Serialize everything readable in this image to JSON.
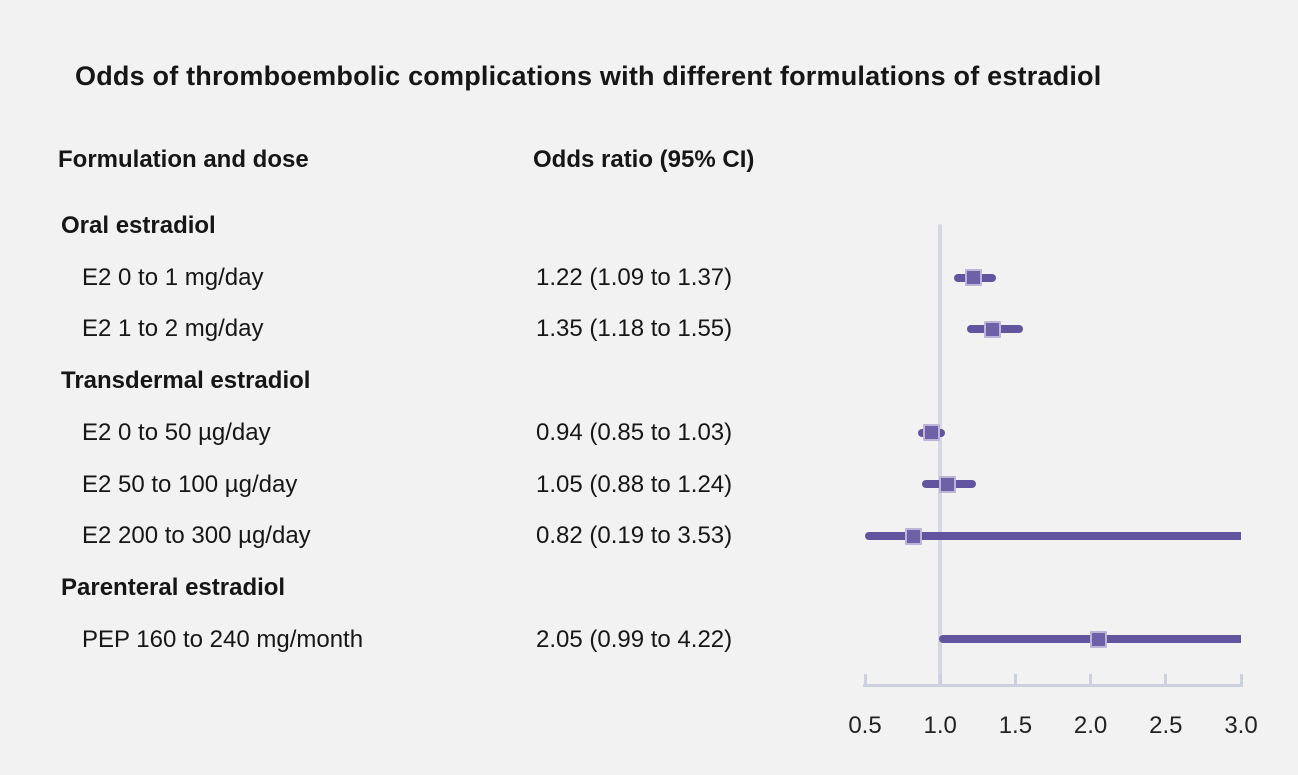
{
  "title": "Odds of thromboembolic complications with different formulations of estradiol",
  "columns": {
    "formulation": "Formulation and dose",
    "odds_ratio": "Odds ratio (95% CI)"
  },
  "colors": {
    "background": "#f2f2f2",
    "text": "#161616",
    "ci_line": "#63549f",
    "marker_fill": "#6f61a8",
    "marker_border": "#beb4da",
    "axis_line": "#ccd1de",
    "reference_line": "#d4d8e3"
  },
  "chart_data": {
    "type": "scatter",
    "variant": "forest-plot",
    "title": "Odds of thromboembolic complications with different formulations of estradiol",
    "xlabel": "Odds ratio",
    "xlim": [
      0.5,
      3.0
    ],
    "reference_line": 1.0,
    "grid": false,
    "legend_position": "none",
    "tick_values": [
      0.5,
      1.0,
      1.5,
      2.0,
      2.5,
      3.0
    ],
    "tick_labels": [
      "0.5",
      "1.0",
      "1.5",
      "2.0",
      "2.5",
      "3.0"
    ],
    "rows": [
      {
        "kind": "section",
        "label": "Oral estradiol"
      },
      {
        "kind": "item",
        "label": "E2 0 to 1 mg/day",
        "or_text": "1.22 (1.09 to 1.37)",
        "estimate": 1.22,
        "ci_low": 1.09,
        "ci_high": 1.37
      },
      {
        "kind": "item",
        "label": "E2 1 to 2 mg/day",
        "or_text": "1.35 (1.18 to 1.55)",
        "estimate": 1.35,
        "ci_low": 1.18,
        "ci_high": 1.55
      },
      {
        "kind": "section",
        "label": "Transdermal estradiol"
      },
      {
        "kind": "item",
        "label": "E2 0 to 50 µg/day",
        "or_text": "0.94 (0.85 to 1.03)",
        "estimate": 0.94,
        "ci_low": 0.85,
        "ci_high": 1.03
      },
      {
        "kind": "item",
        "label": "E2 50 to 100 µg/day",
        "or_text": "1.05 (0.88 to 1.24)",
        "estimate": 1.05,
        "ci_low": 0.88,
        "ci_high": 1.24
      },
      {
        "kind": "item",
        "label": "E2 200 to 300 µg/day",
        "or_text": "0.82 (0.19 to 3.53)",
        "estimate": 0.82,
        "ci_low": 0.19,
        "ci_high": 3.53
      },
      {
        "kind": "section",
        "label": "Parenteral estradiol"
      },
      {
        "kind": "item",
        "label": "PEP 160 to 240 mg/month",
        "or_text": "2.05 (0.99 to 4.22)",
        "estimate": 2.05,
        "ci_low": 0.99,
        "ci_high": 4.22
      }
    ]
  }
}
